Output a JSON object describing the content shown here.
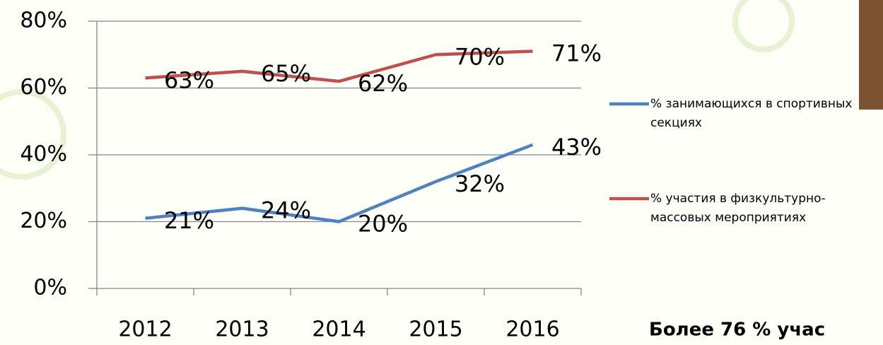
{
  "chart_data": {
    "type": "line",
    "categories": [
      "2012",
      "2013",
      "2014",
      "2015",
      "2016"
    ],
    "series": [
      {
        "name": "% занимающихся в спортивных секциях",
        "color": "#4f81bd",
        "values": [
          21,
          24,
          20,
          32,
          43
        ],
        "value_labels": [
          "21%",
          "24%",
          "20%",
          "32%",
          "43%"
        ]
      },
      {
        "name": "% участия в физкультурно-массовых мероприятиях",
        "color": "#c0504d",
        "values": [
          63,
          65,
          62,
          70,
          71
        ],
        "value_labels": [
          "63%",
          "65%",
          "62%",
          "70%",
          "71%"
        ]
      }
    ],
    "ylim": [
      0,
      80
    ],
    "yticks": [
      {
        "value": 0,
        "label": "0%"
      },
      {
        "value": 20,
        "label": "20%"
      },
      {
        "value": 40,
        "label": "40%"
      },
      {
        "value": 60,
        "label": "60%"
      },
      {
        "value": 80,
        "label": "80%"
      }
    ],
    "grid": true,
    "legend": "right",
    "annotation": "Более 76 % учас"
  }
}
